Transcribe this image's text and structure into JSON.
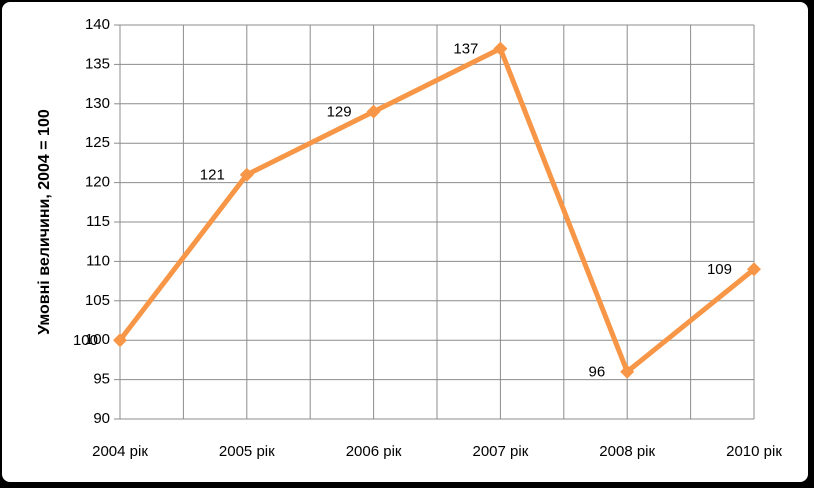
{
  "chart_data": {
    "type": "line",
    "y_label": "Умовні величини, 2004 = 100",
    "categories": [
      "2004 рік",
      "2005 рік",
      "2006 рік",
      "2007 рік",
      "2008 рік",
      "2010 рік"
    ],
    "series": [
      {
        "name": "Умовні величини",
        "color": "#f79646",
        "values": [
          100,
          121,
          129,
          137,
          96,
          109
        ]
      }
    ],
    "ylim": [
      90,
      140
    ],
    "yticks": [
      90,
      95,
      100,
      105,
      110,
      115,
      120,
      125,
      130,
      135,
      140
    ],
    "grid": true,
    "data_labels": true
  }
}
